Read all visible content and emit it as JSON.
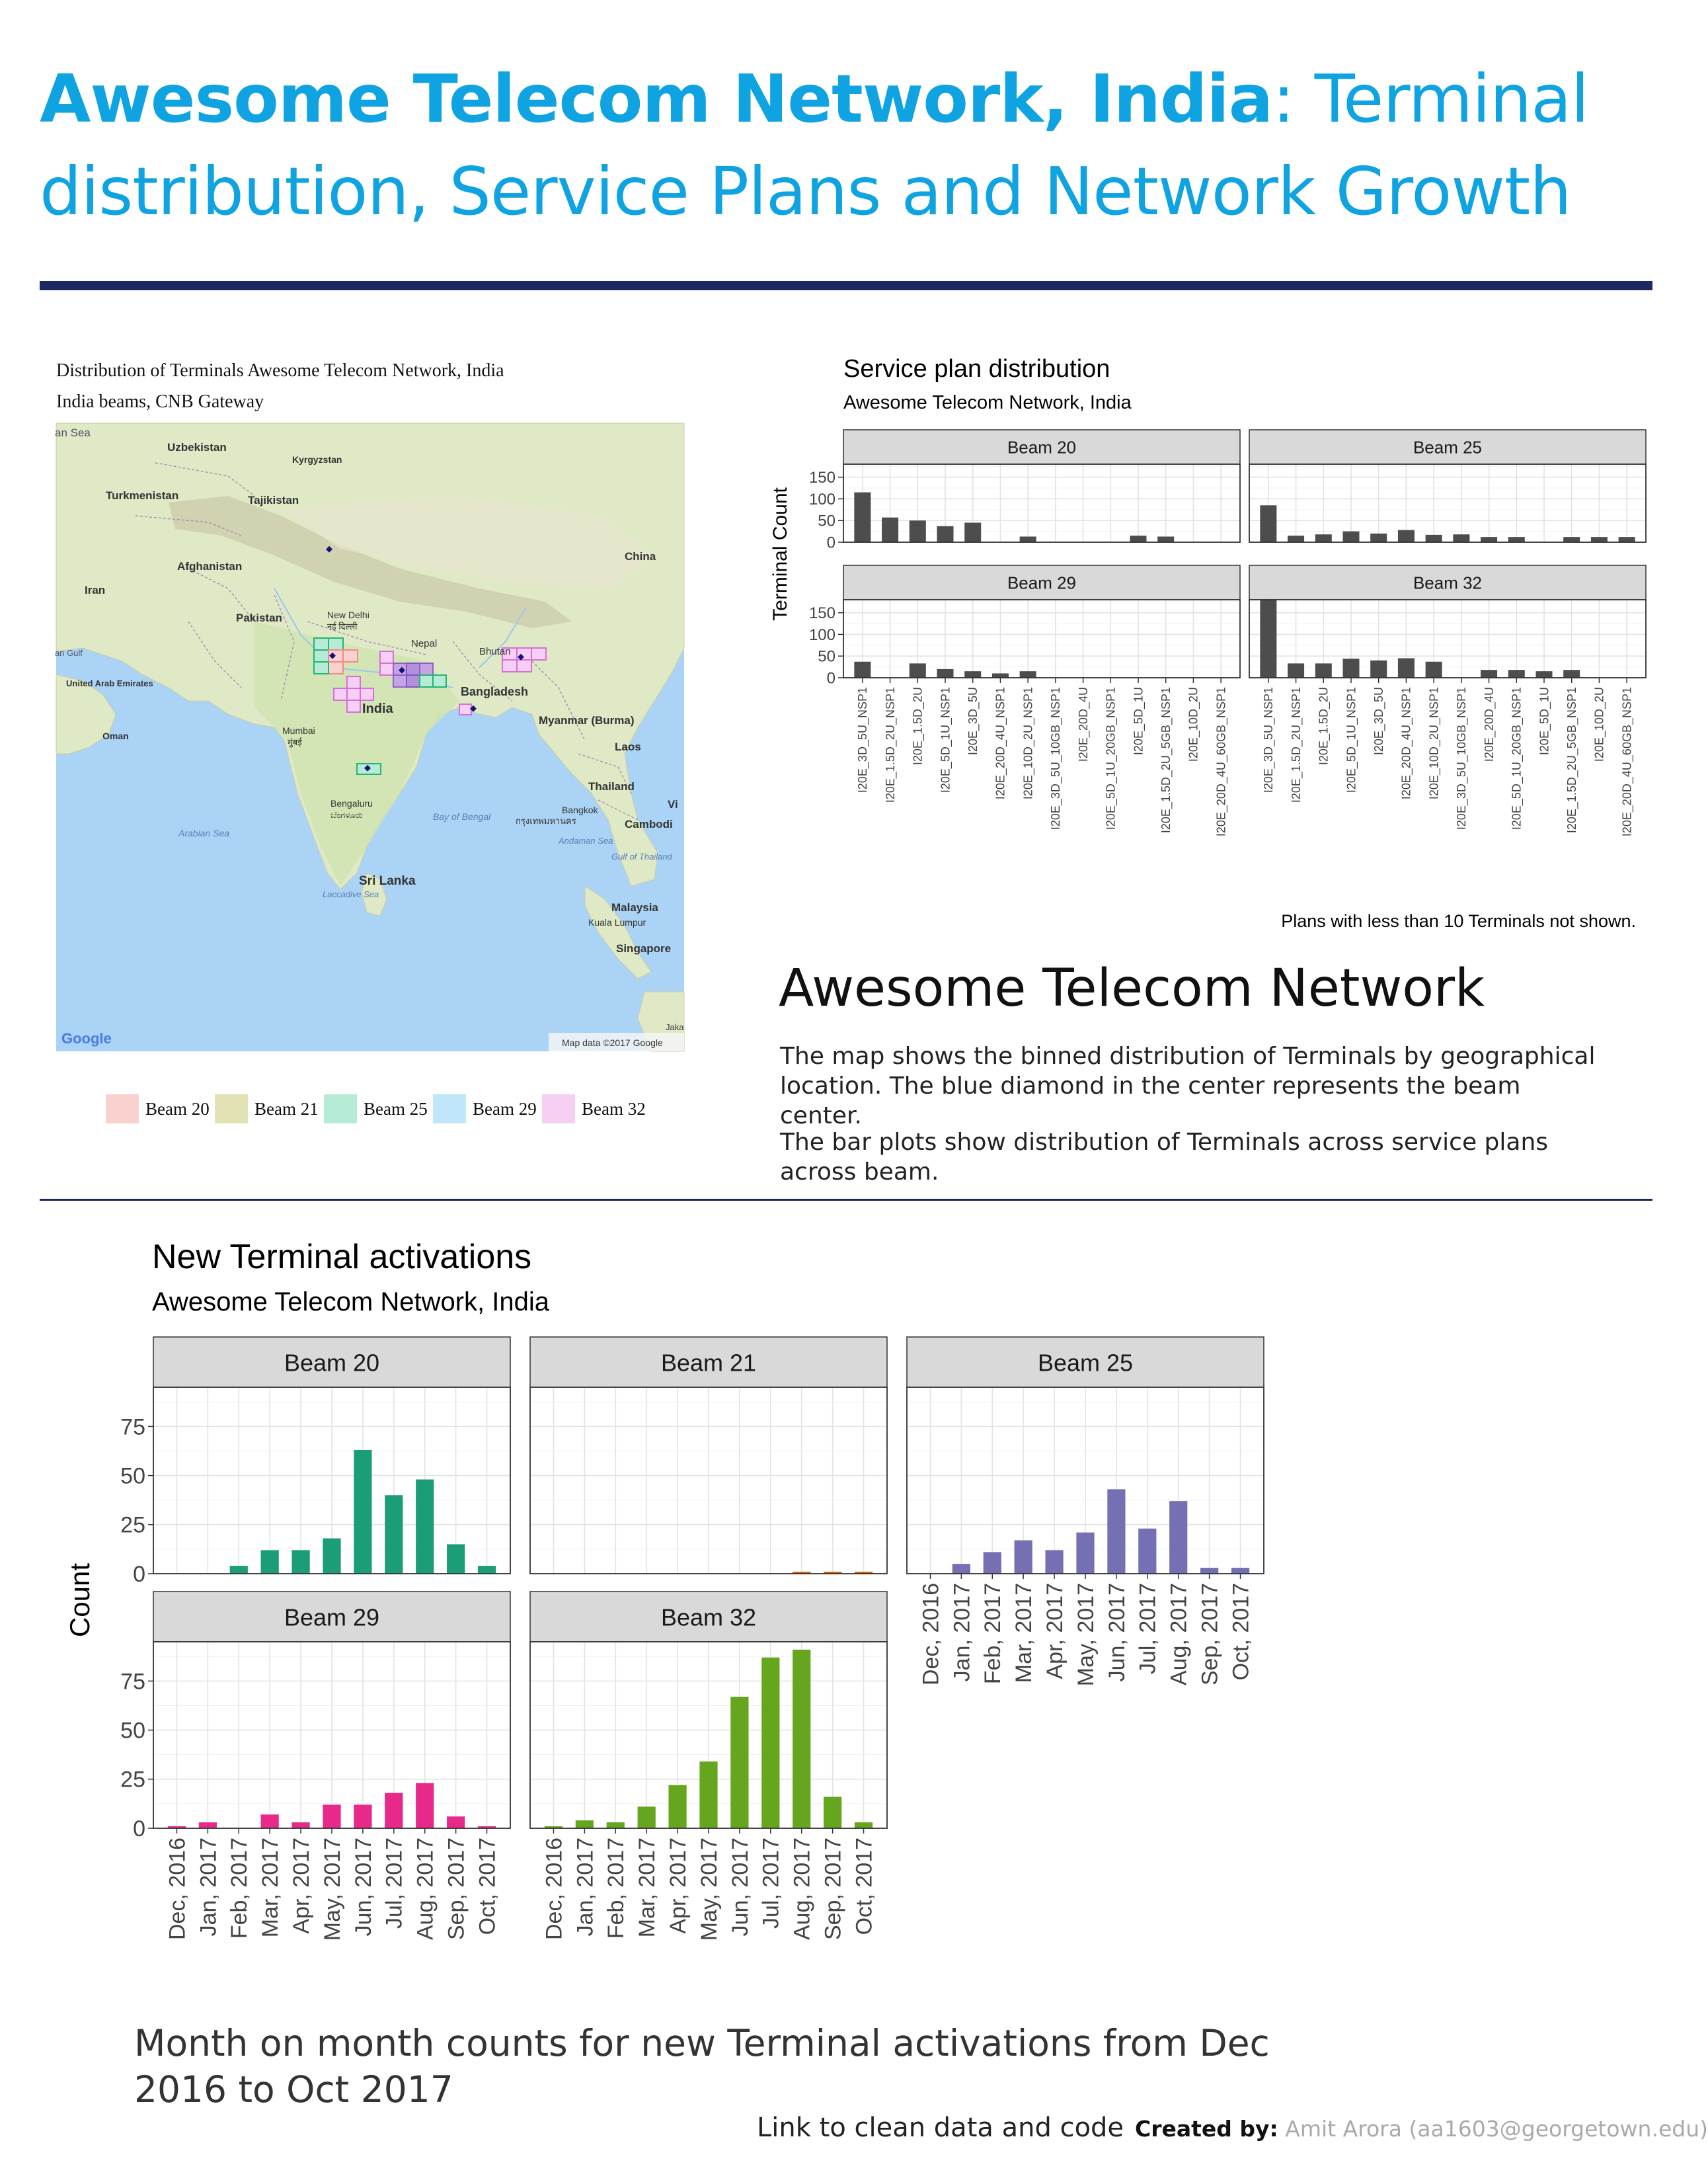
{
  "header": {
    "title_bold": "Awesome Telecom Network, India",
    "title_rest": ": Terminal distribution, Service Plans and Network Growth"
  },
  "map": {
    "title": "Distribution of Terminals Awesome Telecom Network, India",
    "subtitle": "India beams, CNB Gateway",
    "labels": {
      "uzbekistan": "Uzbekistan",
      "kyrgyzstan": "Kyrgyzstan",
      "turkmenistan": "Turkmenistan",
      "tajikistan": "Tajikistan",
      "afghanistan": "Afghanistan",
      "iran": "Iran",
      "pakistan": "Pakistan",
      "china": "China",
      "new_delhi": "New Delhi",
      "new_delhi_hi": "नई दिल्ली",
      "nepal": "Nepal",
      "bhutan": "Bhutan",
      "india": "India",
      "bangladesh": "Bangladesh",
      "uae": "United Arab Emirates",
      "oman": "Oman",
      "mumbai": "Mumbai",
      "mumbai_hi": "मुंबई",
      "myanmar": "Myanmar (Burma)",
      "laos": "Laos",
      "thailand": "Thailand",
      "bengaluru": "Bengaluru",
      "bengaluru_kn": "ಬೆಂಗಳೂರು",
      "bay_of_bengal": "Bay of Bengal",
      "bangkok": "Bangkok",
      "bangkok_th": "กรุงเทพมหานคร",
      "cambodia": "Cambodi",
      "arabian_sea": "Arabian Sea",
      "andaman_sea": "Andaman Sea",
      "gulf_of_thailand": "Gulf of Thailand",
      "sri_lanka": "Sri Lanka",
      "laccadive_sea": "Laccadive Sea",
      "malaysia": "Malaysia",
      "kuala_lumpur": "Kuala Lumpur",
      "singapore": "Singapore",
      "gulf": "an Gulf",
      "an_sea": "an Sea",
      "vi": "Vi",
      "jaka": "Jaka"
    },
    "google": "Google",
    "attribution": "Map data ©2017 Google",
    "legend": [
      {
        "label": "Beam 20",
        "color": "#fbd1cf"
      },
      {
        "label": "Beam 21",
        "color": "#e3e2b4"
      },
      {
        "label": "Beam 25",
        "color": "#b6ecd6"
      },
      {
        "label": "Beam 29",
        "color": "#bfe6f9"
      },
      {
        "label": "Beam 32",
        "color": "#f6cff5"
      }
    ]
  },
  "service_chart": {
    "title": "Service plan distribution",
    "subtitle": "Awesome Telecom Network, India",
    "ylabel": "Terminal Count",
    "note": "Plans with less than 10 Terminals not shown."
  },
  "info": {
    "heading": "Awesome Telecom Network",
    "para1": "The map shows the binned distribution of Terminals by geographical location. The blue diamond in the center represents the beam center.",
    "para2": "The bar plots show distribution of Terminals across service plans across beam."
  },
  "activation_chart": {
    "title": "New Terminal activations",
    "subtitle": "Awesome Telecom Network, India",
    "ylabel": "Count"
  },
  "footer": {
    "caption": "Month on month counts for new Terminal activations from Dec 2016 to Oct 2017",
    "link": "Link to clean data and code",
    "created_label": "Created by:",
    "created_by": "Amit Arora (aa1603@georgetown.edu)"
  },
  "chart_data": [
    {
      "type": "bar",
      "title": "Service plan distribution",
      "subtitle": "Awesome Telecom Network, India",
      "ylabel": "Terminal Count",
      "ylim": [
        0,
        180
      ],
      "yticks": [
        0,
        50,
        100,
        150
      ],
      "grid": true,
      "bar_color": "#4d4d4d",
      "panels": [
        {
          "name": "Beam 20",
          "categories": [
            "I20E_3D_5U_NSP1",
            "I20E_1.5D_2U_NSP1",
            "I20E_1.5D_2U",
            "I20E_5D_1U_NSP1",
            "I20E_3D_5U",
            "I20E_20D_4U_NSP1",
            "I20E_10D_2U_NSP1",
            "I20E_3D_5U_10GB_NSP1",
            "I20E_20D_4U",
            "I20E_5D_1U_20GB_NSP1",
            "I20E_5D_1U",
            "I20E_1.5D_2U_5GB_NSP1",
            "I20E_10D_2U",
            "I20E_20D_4U_60GB_NSP1"
          ],
          "values": [
            115,
            57,
            50,
            37,
            45,
            0,
            13,
            0,
            0,
            0,
            15,
            13,
            0,
            0
          ]
        },
        {
          "name": "Beam 25",
          "categories": [
            "I20E_3D_5U_NSP1",
            "I20E_1.5D_2U_NSP1",
            "I20E_1.5D_2U",
            "I20E_5D_1U_NSP1",
            "I20E_3D_5U",
            "I20E_20D_4U_NSP1",
            "I20E_10D_2U_NSP1",
            "I20E_3D_5U_10GB_NSP1",
            "I20E_20D_4U",
            "I20E_5D_1U_20GB_NSP1",
            "I20E_5D_1U",
            "I20E_1.5D_2U_5GB_NSP1",
            "I20E_10D_2U",
            "I20E_20D_4U_60GB_NSP1"
          ],
          "values": [
            85,
            15,
            18,
            25,
            20,
            28,
            17,
            18,
            12,
            12,
            0,
            12,
            12,
            12
          ]
        },
        {
          "name": "Beam 29",
          "categories": [
            "I20E_3D_5U_NSP1",
            "I20E_1.5D_2U_NSP1",
            "I20E_1.5D_2U",
            "I20E_5D_1U_NSP1",
            "I20E_3D_5U",
            "I20E_20D_4U_NSP1",
            "I20E_10D_2U_NSP1",
            "I20E_3D_5U_10GB_NSP1",
            "I20E_20D_4U",
            "I20E_5D_1U_20GB_NSP1",
            "I20E_5D_1U",
            "I20E_1.5D_2U_5GB_NSP1",
            "I20E_10D_2U",
            "I20E_20D_4U_60GB_NSP1"
          ],
          "values": [
            37,
            0,
            33,
            20,
            15,
            10,
            15,
            0,
            0,
            0,
            0,
            0,
            0,
            0
          ]
        },
        {
          "name": "Beam 32",
          "categories": [
            "I20E_3D_5U_NSP1",
            "I20E_1.5D_2U_NSP1",
            "I20E_1.5D_2U",
            "I20E_5D_1U_NSP1",
            "I20E_3D_5U",
            "I20E_20D_4U_NSP1",
            "I20E_10D_2U_NSP1",
            "I20E_3D_5U_10GB_NSP1",
            "I20E_20D_4U",
            "I20E_5D_1U_20GB_NSP1",
            "I20E_5D_1U",
            "I20E_1.5D_2U_5GB_NSP1",
            "I20E_10D_2U",
            "I20E_20D_4U_60GB_NSP1"
          ],
          "values": [
            180,
            33,
            33,
            44,
            40,
            45,
            37,
            0,
            18,
            18,
            15,
            18,
            0,
            0
          ]
        }
      ]
    },
    {
      "type": "bar",
      "title": "New Terminal activations",
      "subtitle": "Awesome Telecom Network, India",
      "ylabel": "Count",
      "ylim": [
        0,
        95
      ],
      "yticks": [
        0,
        25,
        50,
        75
      ],
      "grid": true,
      "categories": [
        "Dec, 2016",
        "Jan, 2017",
        "Feb, 2017",
        "Mar, 2017",
        "Apr, 2017",
        "May, 2017",
        "Jun, 2017",
        "Jul, 2017",
        "Aug, 2017",
        "Sep, 2017",
        "Oct, 2017"
      ],
      "panels": [
        {
          "name": "Beam 20",
          "color": "#1b9e77",
          "values": [
            0,
            0,
            4,
            12,
            12,
            18,
            63,
            40,
            48,
            15,
            4
          ]
        },
        {
          "name": "Beam 21",
          "color": "#d95f02",
          "values": [
            0,
            0,
            0,
            0,
            0,
            0,
            0,
            0,
            1,
            1,
            1
          ]
        },
        {
          "name": "Beam 25",
          "color": "#7570b3",
          "values": [
            0,
            5,
            11,
            17,
            12,
            21,
            43,
            23,
            37,
            3,
            3
          ]
        },
        {
          "name": "Beam 29",
          "color": "#e7298a",
          "values": [
            1,
            3,
            0,
            7,
            3,
            12,
            12,
            18,
            23,
            6,
            1
          ]
        },
        {
          "name": "Beam 32",
          "color": "#66a61e",
          "values": [
            1,
            4,
            3,
            11,
            22,
            34,
            67,
            87,
            91,
            16,
            3
          ]
        }
      ]
    }
  ]
}
